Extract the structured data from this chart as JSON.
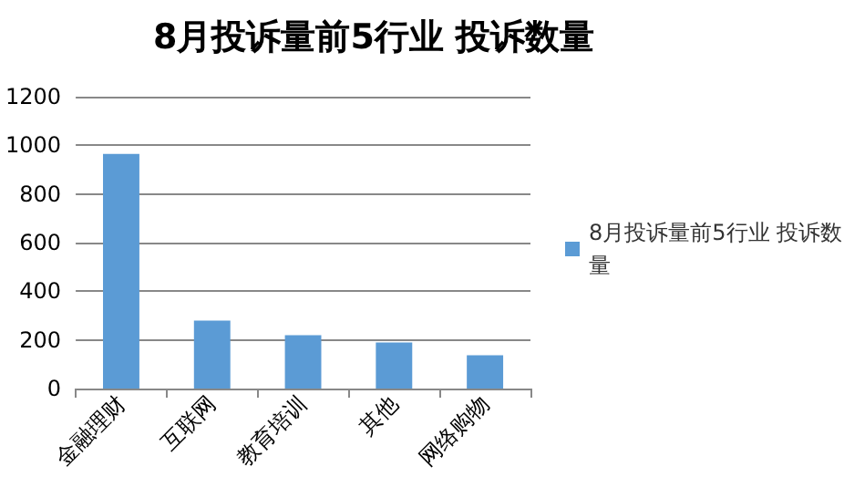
{
  "chart_data": {
    "type": "bar",
    "title": "8月投诉量前5行业 投诉数量",
    "categories": [
      "金融理财",
      "互联网",
      "教育培训",
      "其他",
      "网络购物"
    ],
    "series": [
      {
        "name": "8月投诉量前5行业 投诉数量",
        "color": "#5b9bd5",
        "values": [
          965,
          279,
          219,
          189,
          137
        ]
      }
    ],
    "ylim": [
      0,
      1200
    ],
    "yticks": [
      0,
      200,
      400,
      600,
      800,
      1000,
      1200
    ],
    "grid": "y",
    "legend": "right"
  }
}
